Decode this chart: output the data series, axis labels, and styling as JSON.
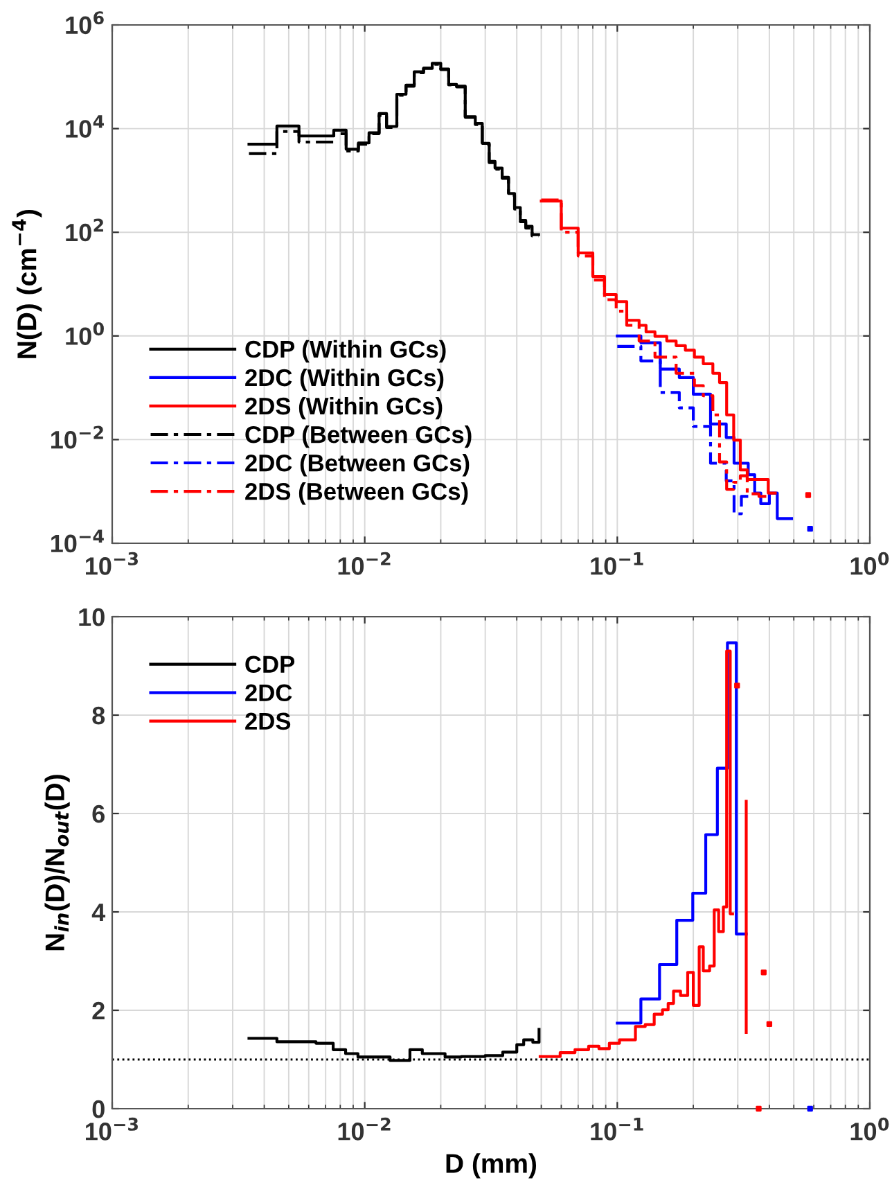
{
  "chart_data": [
    {
      "type": "step",
      "ylabel": "N(D) (cm$^{−4}$)",
      "log": "xy",
      "grid": true,
      "legend": "bottom left",
      "xlim": [
        0.001,
        1
      ],
      "ylim": [
        0.0001,
        1000000
      ],
      "xticks": [
        {
          "value": 0.001,
          "label": "10$^{−3}$"
        },
        {
          "value": 0.01,
          "label": "10$^{−2}$"
        },
        {
          "value": 0.1,
          "label": "10$^{−1}$"
        },
        {
          "value": 1,
          "label": "10$^{0}$"
        }
      ],
      "yticks": [
        {
          "value": 0.0001,
          "label": "10$^{−4}$"
        },
        {
          "value": 0.01,
          "label": "10$^{−2}$"
        },
        {
          "value": 1,
          "label": "10$^{0}$"
        },
        {
          "value": 100,
          "label": "10$^{2}$"
        },
        {
          "value": 10000,
          "label": "10$^{4}$"
        },
        {
          "value": 1000000,
          "label": "10$^{6}$"
        }
      ],
      "series": [
        {
          "name": "CDP (Within GCs)",
          "color": "#000000",
          "line_style": "solid",
          "x": [
            0.00348,
            0.00449,
            0.00549,
            0.00754,
            0.00844,
            0.00944,
            0.0104,
            0.0114,
            0.0122,
            0.0134,
            0.01457,
            0.0157,
            0.0171,
            0.0185,
            0.02,
            0.0215,
            0.0231,
            0.025,
            0.0274,
            0.0292,
            0.0311,
            0.0328,
            0.035,
            0.0371,
            0.0392,
            0.0413,
            0.0434,
            0.046,
            0.0488
          ],
          "values": [
            5000,
            11200,
            7200,
            9300,
            4000,
            5300,
            8300,
            19500,
            11000,
            46000,
            69000,
            125000,
            147000,
            182000,
            141000,
            71000,
            66000,
            17000,
            12600,
            5200,
            2340,
            1730,
            1150,
            560,
            300,
            170,
            130,
            90,
            90
          ]
        },
        {
          "name": "2DC (Within GCs)",
          "color": "#0000ff",
          "line_style": "solid",
          "x": [
            0.1,
            0.124,
            0.148,
            0.176,
            0.2,
            0.234,
            0.27,
            0.29,
            0.33,
            0.35,
            0.37,
            0.4,
            0.43,
            0.49
          ],
          "values": [
            1.0,
            0.74,
            0.23,
            0.157,
            0.075,
            0.02,
            0.011,
            0.0035,
            0.0021,
            0.00093,
            0.00058,
            0.00093,
            0.0003,
            0.0003
          ]
        },
        {
          "name": "2DS (Within GCs)",
          "color": "#ff0000",
          "line_style": "solid",
          "x": [
            0.05,
            0.06,
            0.07,
            0.08,
            0.089,
            0.099,
            0.109,
            0.122,
            0.13,
            0.141,
            0.157,
            0.171,
            0.186,
            0.202,
            0.219,
            0.239,
            0.254,
            0.271,
            0.289,
            0.307,
            0.327,
            0.364,
            0.396,
            0.422
          ],
          "values": [
            400,
            120,
            40,
            14,
            6.3,
            4.6,
            2.0,
            1.6,
            1.2,
            0.98,
            0.8,
            0.65,
            0.53,
            0.39,
            0.29,
            0.19,
            0.126,
            0.03,
            0.0098,
            0.0026,
            0.0017,
            0.0017,
            0.00093,
            0.00093
          ]
        },
        {
          "name": "CDP (Between GCs)",
          "color": "#000000",
          "line_style": "dashed",
          "x": [
            0.00348,
            0.00449,
            0.00549,
            0.00754,
            0.00844,
            0.00944,
            0.0104,
            0.0114,
            0.0122,
            0.0134,
            0.01457,
            0.0157,
            0.0171,
            0.0185,
            0.02,
            0.0215,
            0.0231,
            0.025,
            0.0274,
            0.0292,
            0.0311,
            0.0328,
            0.035,
            0.0371,
            0.0392,
            0.0413,
            0.0434,
            0.046,
            0.0488
          ],
          "values": [
            3300,
            8800,
            5500,
            8000,
            3700,
            5000,
            8000,
            18000,
            10500,
            44000,
            66000,
            120000,
            145000,
            175000,
            138000,
            70000,
            64000,
            16500,
            12000,
            5000,
            2200,
            1650,
            1100,
            520,
            280,
            160,
            120,
            85,
            85
          ]
        },
        {
          "name": "2DC (Between GCs)",
          "color": "#0000ff",
          "line_style": "dashed",
          "x": [
            0.1,
            0.124,
            0.148,
            0.176,
            0.2,
            0.234,
            0.27,
            0.29,
            0.31,
            0.33
          ],
          "values": [
            0.63,
            0.33,
            0.081,
            0.041,
            0.018,
            0.0035,
            0.0016,
            0.00037,
            0.0008,
            0.0008
          ]
        },
        {
          "name": "2DS (Between GCs)",
          "color": "#ff0000",
          "line_style": "dashed",
          "x": [
            0.05,
            0.06,
            0.07,
            0.08,
            0.089,
            0.099,
            0.109,
            0.122,
            0.141,
            0.171,
            0.202,
            0.219,
            0.239,
            0.254,
            0.271,
            0.289,
            0.307,
            0.327,
            0.364,
            0.4
          ],
          "values": [
            420,
            100,
            35,
            12,
            5,
            3.0,
            1.6,
            0.8,
            0.39,
            0.19,
            0.11,
            0.07,
            0.03,
            0.0037,
            0.0011,
            0.0015,
            0.002,
            0.0009,
            0.0008,
            0.0008
          ]
        },
        {
          "type": "scatter",
          "marker": "square",
          "color": "#0000ff",
          "x": [
            0.58
          ],
          "values": [
            0.00019
          ]
        },
        {
          "type": "scatter",
          "marker": "square",
          "color": "#ff0000",
          "x": [
            0.57
          ],
          "values": [
            0.00085
          ]
        }
      ]
    },
    {
      "type": "step",
      "xlabel": "D (mm)",
      "ylabel": "N$_{in}$(D)/N$_{out}$(D)",
      "log": "x",
      "grid": true,
      "legend": "top left",
      "xlim": [
        0.001,
        1
      ],
      "ylim": [
        0,
        10
      ],
      "xticks": [
        {
          "value": 0.001,
          "label": "10$^{−3}$"
        },
        {
          "value": 0.01,
          "label": "10$^{−2}$"
        },
        {
          "value": 0.1,
          "label": "10$^{−1}$"
        },
        {
          "value": 1,
          "label": "10$^{0}$"
        }
      ],
      "yticks": [
        0,
        2,
        4,
        6,
        8,
        10
      ],
      "ref_lines": [
        {
          "axis": "y",
          "value": 1,
          "color": "#000000",
          "line_style": "dotted"
        }
      ],
      "series": [
        {
          "name": "CDP",
          "color": "#000000",
          "line_style": "solid",
          "x": [
            0.00348,
            0.00449,
            0.00641,
            0.0075,
            0.0084,
            0.0094,
            0.0126,
            0.0151,
            0.0169,
            0.0208,
            0.0241,
            0.03,
            0.0352,
            0.04,
            0.0426,
            0.0463,
            0.049
          ],
          "values": [
            1.43,
            1.36,
            1.33,
            1.2,
            1.12,
            1.05,
            0.98,
            1.2,
            1.12,
            1.05,
            1.06,
            1.08,
            1.15,
            1.3,
            1.4,
            1.35,
            1.61
          ]
        },
        {
          "name": "2DC",
          "color": "#0000ff",
          "line_style": "solid",
          "x": [
            0.1,
            0.124,
            0.147,
            0.172,
            0.199,
            0.224,
            0.249,
            0.273,
            0.296,
            0.324
          ],
          "values": [
            1.74,
            2.23,
            2.93,
            3.83,
            4.38,
            5.57,
            6.92,
            9.47,
            3.55,
            3.55
          ]
        },
        {
          "name": "2DS",
          "color": "#ff0000",
          "line_style": "solid",
          "x": [
            0.0495,
            0.0594,
            0.068,
            0.077,
            0.0846,
            0.093,
            0.102,
            0.118,
            0.129,
            0.14,
            0.151,
            0.159,
            0.167,
            0.178,
            0.19,
            0.2,
            0.211,
            0.219,
            0.232,
            0.242,
            0.252,
            0.263,
            0.271,
            0.28,
            0.286
          ],
          "values": [
            1.06,
            1.14,
            1.2,
            1.27,
            1.22,
            1.33,
            1.4,
            1.67,
            1.71,
            1.92,
            2.01,
            2.14,
            2.39,
            2.3,
            2.77,
            2.1,
            3.29,
            2.8,
            2.9,
            4.04,
            3.6,
            4.1,
            9.3,
            3.96,
            3.96
          ]
        },
        {
          "type": "scatter",
          "marker": "square",
          "color": "#ff0000",
          "x": [
            0.298,
            0.38,
            0.4,
            0.363
          ],
          "values": [
            8.6,
            2.77,
            1.72,
            0
          ]
        },
        {
          "type": "line",
          "color": "#ff0000",
          "line_style": "solid",
          "x": [
            0.324,
            0.324
          ],
          "values": [
            6.25,
            1.55
          ]
        },
        {
          "type": "scatter",
          "marker": "square",
          "color": "#0000ff",
          "x": [
            0.58
          ],
          "values": [
            0
          ]
        }
      ]
    }
  ]
}
